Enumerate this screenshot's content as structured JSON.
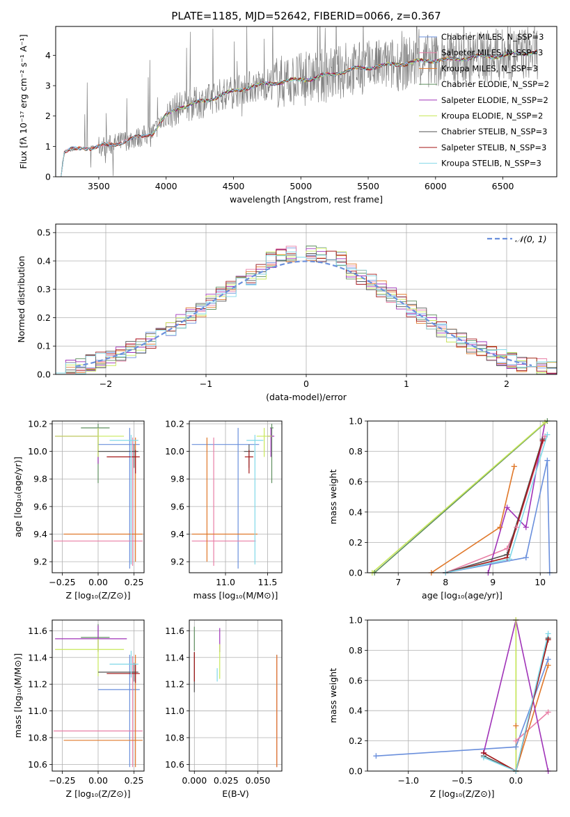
{
  "colors": {
    "chabrier_miles": "#6a8fdc",
    "salpeter_miles": "#e87fa6",
    "kroupa_miles": "#e0782a",
    "chabrier_elodie": "#5f8f5f",
    "salpeter_elodie": "#a033b8",
    "kroupa_elodie": "#c8e85a",
    "chabrier_stelib": "#555555",
    "salpeter_stelib": "#a41818",
    "kroupa_stelib": "#80d8e8",
    "data": "#808080",
    "normal": "#6a8fdc"
  },
  "chart_data": [
    {
      "id": "spectrum",
      "type": "line",
      "title": "PLATE=1185, MJD=52642, FIBERID=0066, z=0.367",
      "xlabel": "wavelength [Angstrom, rest frame]",
      "ylabel": "Flux [fλ 10⁻¹⁷ erg cm⁻² s⁻¹ A⁻¹]",
      "xlim": [
        3180,
        6900
      ],
      "ylim": [
        0,
        4.95
      ],
      "xticks": [
        "3500",
        "4000",
        "4500",
        "5000",
        "5500",
        "6000",
        "6500"
      ],
      "yticks": [
        "0",
        "1",
        "2",
        "3",
        "4"
      ],
      "legend_position": "top-right",
      "legend": [
        "Chabrier MILES, N_SSP=3",
        "Salpeter MILES, N_SSP=3",
        "Kroupa MILES, N_SSP=3",
        "Chabrier ELODIE, N_SSP=2",
        "Salpeter ELODIE, N_SSP=2",
        "Kroupa ELODIE, N_SSP=2",
        "Chabrier STELIB, N_SSP=3",
        "Salpeter STELIB, N_SSP=3",
        "Kroupa STELIB, N_SSP=3"
      ],
      "model_trend": {
        "x": [
          3200,
          3220,
          3240,
          3260,
          3300,
          3400,
          3500,
          3600,
          3700,
          3800,
          3900,
          4000,
          4100,
          4200,
          4300,
          4400,
          4500,
          4600,
          4700,
          4800,
          4900,
          5000,
          5100,
          5200,
          5300,
          5400,
          5500,
          5600,
          5700,
          5800,
          5900,
          6000,
          6100,
          6200,
          6300,
          6400,
          6500,
          6600,
          6700
        ],
        "y": [
          0,
          0,
          0.8,
          0.85,
          0.88,
          0.95,
          1.0,
          1.05,
          1.2,
          1.3,
          1.45,
          2.0,
          2.3,
          2.4,
          2.5,
          2.7,
          2.8,
          2.95,
          3.0,
          3.1,
          3.15,
          3.2,
          3.25,
          3.35,
          3.45,
          3.55,
          3.6,
          3.65,
          3.7,
          3.75,
          3.8,
          3.85,
          3.85,
          3.9,
          3.95,
          3.95,
          4.0,
          4.05,
          4.1
        ]
      }
    },
    {
      "id": "residuals",
      "type": "line",
      "xlabel": "(data-model)/error",
      "ylabel": "Normed distribution",
      "xlim": [
        -2.5,
        2.5
      ],
      "ylim": [
        0,
        0.53
      ],
      "xticks": [
        "−2",
        "−1",
        "0",
        "1",
        "2"
      ],
      "yticks": [
        "0.0",
        "0.1",
        "0.2",
        "0.3",
        "0.4",
        "0.5"
      ],
      "legend_position": "top-right",
      "legend": [
        "𝒩(0, 1)"
      ]
    },
    {
      "id": "age_vs_Z",
      "type": "scatter",
      "xlabel": "Z [log₁₀(Z/Z⊙)]",
      "ylabel": "age  [log₁₀(age/yr)]",
      "xlim": [
        -0.32,
        0.32
      ],
      "ylim": [
        9.12,
        10.22
      ],
      "xticks": [
        "−0.25",
        "0.00",
        "0.25"
      ],
      "yticks": [
        "9.2",
        "9.4",
        "9.6",
        "9.8",
        "10.0",
        "10.2"
      ],
      "series": [
        {
          "x": 0.22,
          "y": 10.05,
          "xerr": [
            0.22,
            0.07
          ],
          "yerr": [
            0.9,
            0.12
          ],
          "c": "chabrier_miles"
        },
        {
          "x": 0.24,
          "y": 9.35,
          "xerr": [
            0.55,
            0.07
          ],
          "yerr": [
            0.18,
            0.75
          ],
          "c": "salpeter_miles"
        },
        {
          "x": 0.26,
          "y": 9.4,
          "xerr": [
            0.5,
            0.05
          ],
          "yerr": [
            0.2,
            0.7
          ],
          "c": "kroupa_miles"
        },
        {
          "x": 0.0,
          "y": 10.17,
          "xerr": [
            0.12,
            0.08
          ],
          "yerr": [
            0.4,
            0.03
          ],
          "c": "chabrier_elodie"
        },
        {
          "x": 0.0,
          "y": 10.11,
          "xerr": [
            0.3,
            0.0
          ],
          "yerr": [
            0.2,
            0.06
          ],
          "c": "salpeter_elodie"
        },
        {
          "x": 0.0,
          "y": 10.11,
          "xerr": [
            0.3,
            0.18
          ],
          "yerr": [
            0.15,
            0.06
          ],
          "c": "kroupa_elodie"
        },
        {
          "x": 0.25,
          "y": 10.0,
          "xerr": [
            0.25,
            0.03
          ],
          "yerr": [
            0.12,
            0.05
          ],
          "c": "chabrier_stelib"
        },
        {
          "x": 0.26,
          "y": 9.96,
          "xerr": [
            0.2,
            0.03
          ],
          "yerr": [
            0.12,
            0.05
          ],
          "c": "salpeter_stelib"
        },
        {
          "x": 0.23,
          "y": 10.08,
          "xerr": [
            0.15,
            0.05
          ],
          "yerr": [
            0.9,
            0.04
          ],
          "c": "kroupa_stelib"
        }
      ]
    },
    {
      "id": "age_vs_mass",
      "type": "scatter",
      "xlabel": "mass [log₁₀(M/M⊙)]",
      "xlim": [
        10.57,
        11.67
      ],
      "ylim": [
        9.12,
        10.22
      ],
      "xticks": [
        "11.0",
        "11.5"
      ],
      "yticks": [
        "9.2",
        "9.4",
        "9.6",
        "9.8",
        "10.0",
        "10.2"
      ],
      "series": [
        {
          "x": 11.15,
          "y": 10.05,
          "xerr": [
            0.55,
            0.25
          ],
          "yerr": [
            0.9,
            0.12
          ],
          "c": "chabrier_miles"
        },
        {
          "x": 10.86,
          "y": 9.35,
          "xerr": [
            0.26,
            0.5
          ],
          "yerr": [
            0.18,
            0.75
          ],
          "c": "salpeter_miles"
        },
        {
          "x": 10.78,
          "y": 9.4,
          "xerr": [
            0.18,
            0.6
          ],
          "yerr": [
            0.2,
            0.7
          ],
          "c": "kroupa_miles"
        },
        {
          "x": 11.55,
          "y": 10.17,
          "xerr": [
            0.02,
            0.02
          ],
          "yerr": [
            0.4,
            0.03
          ],
          "c": "chabrier_elodie"
        },
        {
          "x": 11.54,
          "y": 10.11,
          "xerr": [
            0.04,
            0.04
          ],
          "yerr": [
            0.15,
            0.06
          ],
          "c": "salpeter_elodie"
        },
        {
          "x": 11.46,
          "y": 10.11,
          "xerr": [
            0.09,
            0.09
          ],
          "yerr": [
            0.15,
            0.06
          ],
          "c": "kroupa_elodie"
        },
        {
          "x": 11.28,
          "y": 10.0,
          "xerr": [
            0.06,
            0.06
          ],
          "yerr": [
            0.12,
            0.05
          ],
          "c": "chabrier_stelib"
        },
        {
          "x": 11.28,
          "y": 9.96,
          "xerr": [
            0.05,
            0.05
          ],
          "yerr": [
            0.12,
            0.05
          ],
          "c": "salpeter_stelib"
        },
        {
          "x": 11.35,
          "y": 10.08,
          "xerr": [
            0.1,
            0.1
          ],
          "yerr": [
            0.9,
            0.04
          ],
          "c": "kroupa_stelib"
        }
      ]
    },
    {
      "id": "massweight_vs_age",
      "type": "line",
      "xlabel": "age  [log₁₀(age/yr)]",
      "ylabel": "mass weight",
      "xlim": [
        6.35,
        10.35
      ],
      "ylim": [
        0,
        1.0
      ],
      "xticks": [
        "7",
        "8",
        "9",
        "10"
      ],
      "yticks": [
        "0.0",
        "0.2",
        "0.4",
        "0.6",
        "0.8",
        "1.0"
      ],
      "series": [
        {
          "x": [
            8.0,
            9.7,
            10.15,
            10.2
          ],
          "y": [
            0.0,
            0.1,
            0.74,
            0.0
          ],
          "c": "chabrier_miles"
        },
        {
          "x": [
            8.0,
            9.3,
            9.5,
            10.1
          ],
          "y": [
            0.0,
            0.16,
            0.3,
            0.9
          ],
          "c": "salpeter_miles"
        },
        {
          "x": [
            7.7,
            9.15,
            9.45,
            9.45
          ],
          "y": [
            0.0,
            0.3,
            0.7,
            0.7
          ],
          "c": "kroupa_miles"
        },
        {
          "x": [
            6.5,
            10.15
          ],
          "y": [
            0.0,
            1.0
          ],
          "c": "chabrier_elodie"
        },
        {
          "x": [
            8.9,
            9.3,
            9.7,
            10.1
          ],
          "y": [
            0.0,
            0.43,
            0.3,
            0.99
          ],
          "c": "salpeter_elodie"
        },
        {
          "x": [
            6.45,
            10.1
          ],
          "y": [
            0.0,
            0.99
          ],
          "c": "kroupa_elodie"
        },
        {
          "x": [
            8.0,
            9.3,
            10.05
          ],
          "y": [
            0.0,
            0.12,
            0.88
          ],
          "c": "chabrier_stelib"
        },
        {
          "x": [
            8.0,
            9.3,
            10.05
          ],
          "y": [
            0.0,
            0.1,
            0.87
          ],
          "c": "salpeter_stelib"
        },
        {
          "x": [
            8.0,
            9.35,
            10.15
          ],
          "y": [
            0.0,
            0.09,
            0.91
          ],
          "c": "kroupa_stelib"
        }
      ]
    },
    {
      "id": "mass_vs_Z",
      "type": "scatter",
      "xlabel": "Z [log₁₀(Z/Z⊙)]",
      "ylabel": "mass [log₁₀(M/M⊙)]",
      "xlim": [
        -0.32,
        0.32
      ],
      "ylim": [
        10.55,
        11.68
      ],
      "xticks": [
        "−0.25",
        "0.00",
        "0.25"
      ],
      "yticks": [
        "10.6",
        "10.8",
        "11.0",
        "11.2",
        "11.4",
        "11.6"
      ],
      "series": [
        {
          "x": 0.22,
          "y": 11.16,
          "xerr": [
            0.22,
            0.07
          ],
          "yerr": [
            0.58,
            0.26
          ],
          "c": "chabrier_miles"
        },
        {
          "x": 0.24,
          "y": 10.85,
          "xerr": [
            0.55,
            0.07
          ],
          "yerr": [
            0.27,
            0.56
          ],
          "c": "salpeter_miles"
        },
        {
          "x": 0.26,
          "y": 10.78,
          "xerr": [
            0.5,
            0.05
          ],
          "yerr": [
            0.2,
            0.64
          ],
          "c": "kroupa_miles"
        },
        {
          "x": 0.0,
          "y": 11.55,
          "xerr": [
            0.12,
            0.08
          ],
          "yerr": [
            0.1,
            0.1
          ],
          "c": "chabrier_elodie"
        },
        {
          "x": 0.0,
          "y": 11.54,
          "xerr": [
            0.3,
            0.2
          ],
          "yerr": [
            0.1,
            0.1
          ],
          "c": "salpeter_elodie"
        },
        {
          "x": 0.0,
          "y": 11.46,
          "xerr": [
            0.3,
            0.18
          ],
          "yerr": [
            0.2,
            0.08
          ],
          "c": "kroupa_elodie"
        },
        {
          "x": 0.25,
          "y": 11.29,
          "xerr": [
            0.25,
            0.03
          ],
          "yerr": [
            0.07,
            0.07
          ],
          "c": "chabrier_stelib"
        },
        {
          "x": 0.26,
          "y": 11.28,
          "xerr": [
            0.2,
            0.03
          ],
          "yerr": [
            0.07,
            0.07
          ],
          "c": "salpeter_stelib"
        },
        {
          "x": 0.23,
          "y": 11.35,
          "xerr": [
            0.15,
            0.05
          ],
          "yerr": [
            0.1,
            0.1
          ],
          "c": "kroupa_stelib"
        }
      ]
    },
    {
      "id": "mass_vs_ebv",
      "type": "scatter",
      "xlabel": "E(B-V)",
      "xlim": [
        -0.004,
        0.069
      ],
      "ylim": [
        10.55,
        11.68
      ],
      "xticks": [
        "0.000",
        "0.025",
        "0.050"
      ],
      "yticks": [
        "10.6",
        "10.8",
        "11.0",
        "11.2",
        "11.4",
        "11.6"
      ],
      "series": [
        {
          "x": 0.065,
          "y": 11.16,
          "yerr": [
            0.58,
            0.26
          ],
          "c": "chabrier_miles"
        },
        {
          "x": 0.065,
          "y": 10.85,
          "yerr": [
            0.27,
            0.56
          ],
          "c": "salpeter_miles"
        },
        {
          "x": 0.065,
          "y": 10.78,
          "yerr": [
            0.2,
            0.64
          ],
          "c": "kroupa_miles"
        },
        {
          "x": 0.0,
          "y": 11.55,
          "yerr": [
            0.1,
            0.08
          ],
          "c": "chabrier_elodie"
        },
        {
          "x": 0.02,
          "y": 11.54,
          "yerr": [
            0.1,
            0.08
          ],
          "c": "salpeter_elodie"
        },
        {
          "x": 0.02,
          "y": 11.37,
          "yerr": [
            0.13,
            0.13
          ],
          "c": "kroupa_elodie"
        },
        {
          "x": 0.0,
          "y": 11.29,
          "yerr": [
            0.15,
            0.15
          ],
          "c": "chabrier_stelib"
        },
        {
          "x": 0.0,
          "y": 11.32,
          "yerr": [
            0.1,
            0.12
          ],
          "c": "salpeter_stelib"
        },
        {
          "x": 0.018,
          "y": 11.27,
          "yerr": [
            0.05,
            0.05
          ],
          "c": "kroupa_stelib"
        }
      ]
    },
    {
      "id": "massweight_vs_Z",
      "type": "line",
      "xlabel": "Z [log₁₀(Z/Z⊙)]",
      "ylabel": "mass weight",
      "xlim": [
        -1.38,
        0.38
      ],
      "ylim": [
        0,
        1.0
      ],
      "xticks": [
        "−1.0",
        "−0.5",
        "0.0"
      ],
      "yticks": [
        "0.0",
        "0.2",
        "0.4",
        "0.6",
        "0.8",
        "1.0"
      ],
      "series": [
        {
          "x": [
            -1.3,
            0.0,
            0.3
          ],
          "y": [
            0.1,
            0.16,
            0.74
          ],
          "c": "chabrier_miles"
        },
        {
          "x": [
            0.0,
            0.0,
            0.3
          ],
          "y": [
            0.0,
            0.2,
            0.39
          ],
          "c": "salpeter_miles"
        },
        {
          "x": [
            0.0,
            0.0,
            0.3
          ],
          "y": [
            0.3,
            0.0,
            0.7
          ],
          "c": "kroupa_miles"
        },
        {
          "x": [
            0.0,
            0.0
          ],
          "y": [
            0.0,
            1.0
          ],
          "c": "chabrier_elodie"
        },
        {
          "x": [
            -0.3,
            0.0,
            0.3
          ],
          "y": [
            0.12,
            1.0,
            0.0
          ],
          "c": "salpeter_elodie"
        },
        {
          "x": [
            0.0,
            0.0
          ],
          "y": [
            0.0,
            1.0
          ],
          "c": "kroupa_elodie"
        },
        {
          "x": [
            -0.3,
            0.0,
            0.3
          ],
          "y": [
            0.1,
            0.0,
            0.88
          ],
          "c": "chabrier_stelib"
        },
        {
          "x": [
            -0.3,
            0.0,
            0.3
          ],
          "y": [
            0.12,
            0.0,
            0.87
          ],
          "c": "salpeter_stelib"
        },
        {
          "x": [
            -0.3,
            0.0,
            0.3
          ],
          "y": [
            0.09,
            0.0,
            0.91
          ],
          "c": "kroupa_stelib"
        }
      ]
    }
  ]
}
